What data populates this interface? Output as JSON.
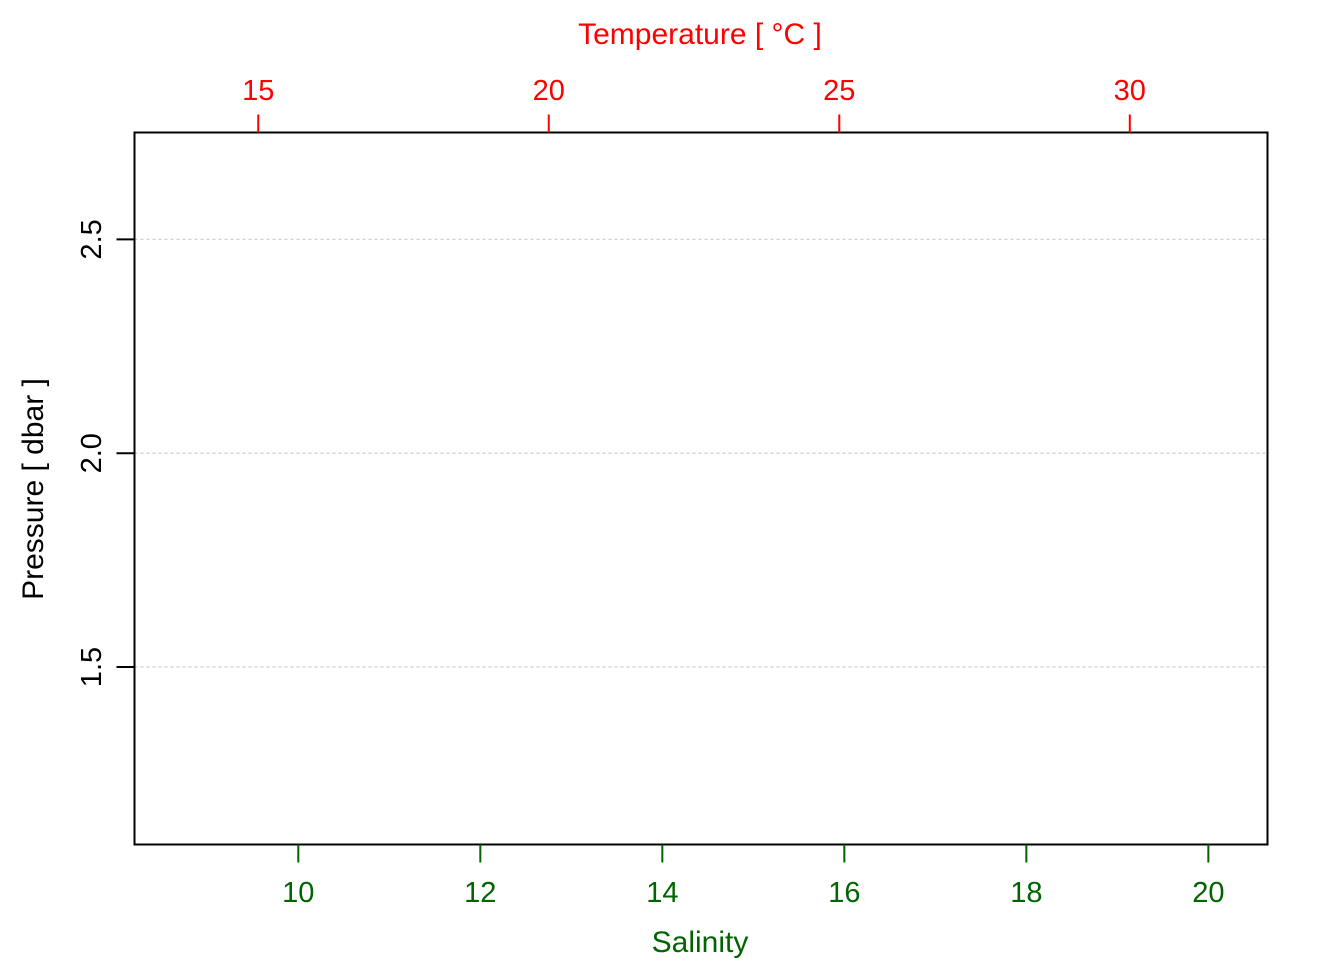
{
  "chart_data": {
    "type": "line",
    "title": "",
    "top_axis": {
      "label": "Temperature [ °C ]",
      "ticks": [
        15,
        20,
        25,
        30
      ],
      "range": [
        12.87,
        32.37
      ],
      "color": "#ff0000"
    },
    "bottom_axis": {
      "label": "Salinity",
      "ticks": [
        10,
        12,
        14,
        16,
        18,
        20
      ],
      "range": [
        8.2,
        20.65
      ],
      "color": "#006400"
    },
    "y_axis": {
      "label": "Pressure [ dbar ]",
      "ticks": [
        "1.5",
        "2.0",
        "2.5"
      ],
      "range": [
        2.75,
        1.085
      ],
      "reversed": true,
      "grid": true,
      "color": "#000000"
    },
    "series": []
  }
}
